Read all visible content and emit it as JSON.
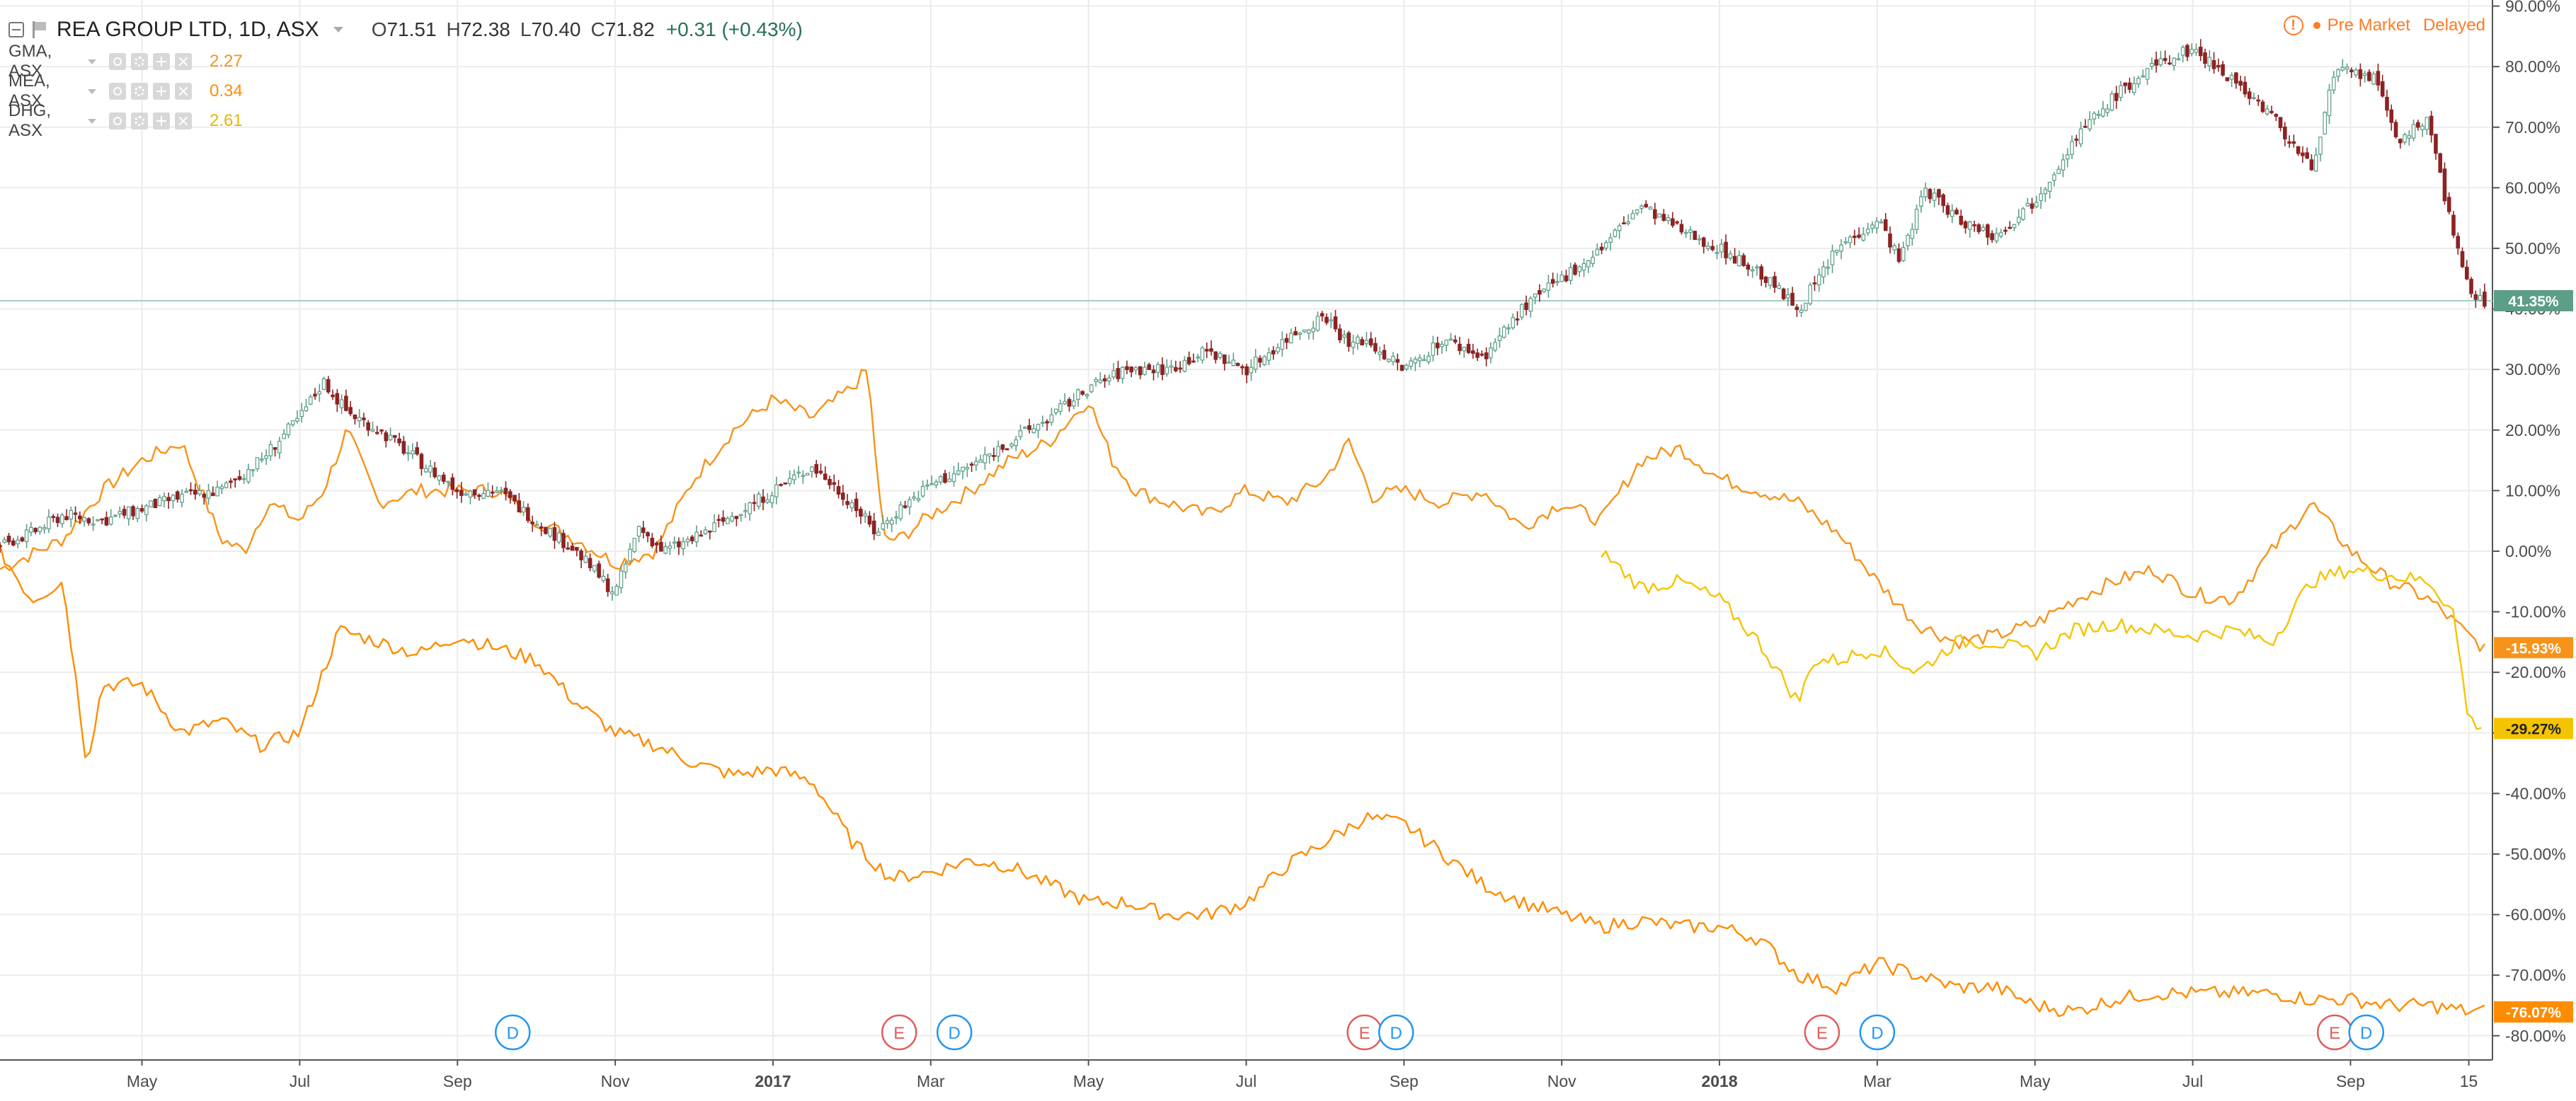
{
  "header": {
    "title": "REA GROUP LTD, 1D, ASX",
    "ohlc": {
      "o_label": "O",
      "o": "71.51",
      "h_label": "H",
      "h": "72.38",
      "l_label": "L",
      "l": "70.40",
      "c_label": "C",
      "c": "71.82",
      "change": "+0.31 (+0.43%)"
    }
  },
  "comparisons": [
    {
      "symbol": "GMA, ASX",
      "value": "2.27",
      "color": "#f7931a"
    },
    {
      "symbol": "MEA, ASX",
      "value": "0.34",
      "color": "#ff8c00"
    },
    {
      "symbol": "DHG, ASX",
      "value": "2.61",
      "color": "#f5c400"
    }
  ],
  "status": {
    "pre_market": "Pre Market",
    "delayed": "Delayed",
    "warning_icon": "!"
  },
  "colors": {
    "up": "#5c9e88",
    "down": "#8c2323",
    "grid": "#ececec",
    "hline": "#a3cfc0"
  },
  "chart_data": {
    "type": "line",
    "y_axis": {
      "ticks": [
        "90.00%",
        "80.00%",
        "70.00%",
        "60.00%",
        "50.00%",
        "40.00%",
        "30.00%",
        "20.00%",
        "10.00%",
        "0.00%",
        "-10.00%",
        "-20.00%",
        "-30.00%",
        "-40.00%",
        "-50.00%",
        "-60.00%",
        "-70.00%",
        "-80.00%"
      ],
      "min": -84,
      "max": 91,
      "unit": "%"
    },
    "x_axis": {
      "ticks": [
        {
          "label": "May",
          "t": 1.0,
          "bold": false
        },
        {
          "label": "Jul",
          "t": 3.0,
          "bold": false
        },
        {
          "label": "Sep",
          "t": 5.0,
          "bold": false
        },
        {
          "label": "Nov",
          "t": 7.0,
          "bold": false
        },
        {
          "label": "2017",
          "t": 9.0,
          "bold": true
        },
        {
          "label": "Mar",
          "t": 11.0,
          "bold": false
        },
        {
          "label": "May",
          "t": 13.0,
          "bold": false
        },
        {
          "label": "Jul",
          "t": 15.0,
          "bold": false
        },
        {
          "label": "Sep",
          "t": 17.0,
          "bold": false
        },
        {
          "label": "Nov",
          "t": 19.0,
          "bold": false
        },
        {
          "label": "2018",
          "t": 21.0,
          "bold": true
        },
        {
          "label": "Mar",
          "t": 23.0,
          "bold": false
        },
        {
          "label": "May",
          "t": 25.0,
          "bold": false
        },
        {
          "label": "Jul",
          "t": 27.0,
          "bold": false
        },
        {
          "label": "Sep",
          "t": 29.0,
          "bold": false
        },
        {
          "label": "15",
          "t": 30.5,
          "bold": false
        }
      ],
      "t_min": -0.8,
      "t_max": 30.8
    },
    "series": [
      {
        "symbol": "REA",
        "style": "candle",
        "last_label": "41.35%",
        "label_color": "#5c9e88",
        "points": [
          [
            -0.8,
            1
          ],
          [
            -0.4,
            3
          ],
          [
            0,
            6
          ],
          [
            0.5,
            5
          ],
          [
            1,
            7
          ],
          [
            1.5,
            9
          ],
          [
            2,
            10
          ],
          [
            2.5,
            15
          ],
          [
            3,
            22
          ],
          [
            3.3,
            28
          ],
          [
            3.6,
            23
          ],
          [
            4,
            20
          ],
          [
            4.5,
            15
          ],
          [
            5,
            10
          ],
          [
            5.5,
            10
          ],
          [
            6,
            5
          ],
          [
            6.5,
            0
          ],
          [
            7,
            -7
          ],
          [
            7.3,
            4
          ],
          [
            7.6,
            0
          ],
          [
            8,
            2
          ],
          [
            8.5,
            6
          ],
          [
            9,
            10
          ],
          [
            9.5,
            14
          ],
          [
            10,
            8
          ],
          [
            10.3,
            3
          ],
          [
            10.6,
            7
          ],
          [
            11,
            11
          ],
          [
            11.5,
            14
          ],
          [
            12,
            18
          ],
          [
            12.5,
            22
          ],
          [
            13,
            27
          ],
          [
            13.5,
            30
          ],
          [
            14,
            30
          ],
          [
            14.5,
            33
          ],
          [
            15,
            30
          ],
          [
            15.5,
            35
          ],
          [
            16,
            39
          ],
          [
            16.3,
            34
          ],
          [
            16.5,
            35
          ],
          [
            17,
            30
          ],
          [
            17.5,
            35
          ],
          [
            18,
            32
          ],
          [
            18.5,
            40
          ],
          [
            19,
            45
          ],
          [
            19.5,
            50
          ],
          [
            20,
            57
          ],
          [
            20.5,
            53
          ],
          [
            21,
            50
          ],
          [
            21.5,
            46
          ],
          [
            22,
            40
          ],
          [
            22.5,
            50
          ],
          [
            23,
            55
          ],
          [
            23.3,
            48
          ],
          [
            23.6,
            60
          ],
          [
            24,
            55
          ],
          [
            24.5,
            52
          ],
          [
            25,
            58
          ],
          [
            25.5,
            68
          ],
          [
            26,
            75
          ],
          [
            26.5,
            80
          ],
          [
            27,
            83
          ],
          [
            27.5,
            78
          ],
          [
            28,
            72
          ],
          [
            28.5,
            63
          ],
          [
            28.8,
            79
          ],
          [
            29,
            79
          ],
          [
            29.3,
            78
          ],
          [
            29.6,
            68
          ],
          [
            30,
            71
          ],
          [
            30.3,
            52
          ],
          [
            30.5,
            43
          ],
          [
            30.7,
            41
          ]
        ]
      },
      {
        "symbol": "GMA, ASX",
        "color": "#f7931a",
        "last_label": "-15.93%",
        "label_color": "#f7931a",
        "points": [
          [
            -0.8,
            -3
          ],
          [
            0,
            2
          ],
          [
            0.5,
            10
          ],
          [
            1,
            15
          ],
          [
            1.5,
            18
          ],
          [
            2,
            2
          ],
          [
            2.3,
            0
          ],
          [
            2.6,
            8
          ],
          [
            3,
            5
          ],
          [
            3.3,
            10
          ],
          [
            3.6,
            20
          ],
          [
            4,
            8
          ],
          [
            4.5,
            10
          ],
          [
            5,
            10
          ],
          [
            5.5,
            10
          ],
          [
            6,
            5
          ],
          [
            6.5,
            2
          ],
          [
            7,
            -2
          ],
          [
            7.5,
            0
          ],
          [
            8,
            12
          ],
          [
            8.5,
            20
          ],
          [
            9,
            25
          ],
          [
            9.5,
            22
          ],
          [
            10,
            27
          ],
          [
            10.2,
            30
          ],
          [
            10.4,
            2
          ],
          [
            10.6,
            2
          ],
          [
            11,
            6
          ],
          [
            11.5,
            10
          ],
          [
            12,
            15
          ],
          [
            12.5,
            18
          ],
          [
            13,
            25
          ],
          [
            13.3,
            15
          ],
          [
            13.6,
            10
          ],
          [
            14,
            8
          ],
          [
            14.5,
            6
          ],
          [
            15,
            10
          ],
          [
            15.5,
            8
          ],
          [
            16,
            12
          ],
          [
            16.3,
            18
          ],
          [
            16.6,
            9
          ],
          [
            17,
            10
          ],
          [
            17.5,
            8
          ],
          [
            18,
            10
          ],
          [
            18.5,
            4
          ],
          [
            19,
            8
          ],
          [
            19.5,
            5
          ],
          [
            20,
            15
          ],
          [
            20.5,
            17
          ],
          [
            21,
            12
          ],
          [
            21.5,
            10
          ],
          [
            22,
            8
          ],
          [
            22.5,
            3
          ],
          [
            23,
            -5
          ],
          [
            23.5,
            -12
          ],
          [
            24,
            -15
          ],
          [
            24.5,
            -14
          ],
          [
            25,
            -12
          ],
          [
            25.5,
            -8
          ],
          [
            26,
            -5
          ],
          [
            26.5,
            -3
          ],
          [
            27,
            -7
          ],
          [
            27.5,
            -8
          ],
          [
            28,
            0
          ],
          [
            28.5,
            8
          ],
          [
            29,
            0
          ],
          [
            29.5,
            -5
          ],
          [
            30,
            -8
          ],
          [
            30.5,
            -14
          ],
          [
            30.7,
            -16
          ]
        ]
      },
      {
        "symbol": "MEA, ASX",
        "color": "#ff8c00",
        "last_label": "-76.07%",
        "label_color": "#ff8c00",
        "points": [
          [
            -0.8,
            0
          ],
          [
            -0.4,
            -8
          ],
          [
            0,
            -5
          ],
          [
            0.3,
            -35
          ],
          [
            0.5,
            -22
          ],
          [
            1,
            -22
          ],
          [
            1.5,
            -30
          ],
          [
            2,
            -28
          ],
          [
            2.5,
            -32
          ],
          [
            3,
            -30
          ],
          [
            3.5,
            -13
          ],
          [
            4,
            -15
          ],
          [
            4.5,
            -17
          ],
          [
            5,
            -14
          ],
          [
            5.5,
            -16
          ],
          [
            6,
            -18
          ],
          [
            6.5,
            -25
          ],
          [
            7,
            -30
          ],
          [
            7.5,
            -32
          ],
          [
            8,
            -35
          ],
          [
            8.5,
            -37
          ],
          [
            9,
            -36
          ],
          [
            9.5,
            -38
          ],
          [
            10,
            -48
          ],
          [
            10.5,
            -54
          ],
          [
            11,
            -53
          ],
          [
            11.5,
            -51
          ],
          [
            12,
            -52
          ],
          [
            12.5,
            -55
          ],
          [
            13,
            -58
          ],
          [
            13.5,
            -58
          ],
          [
            14,
            -60
          ],
          [
            14.5,
            -60
          ],
          [
            15,
            -58
          ],
          [
            15.5,
            -52
          ],
          [
            16,
            -48
          ],
          [
            16.5,
            -44
          ],
          [
            17,
            -45
          ],
          [
            17.5,
            -50
          ],
          [
            18,
            -55
          ],
          [
            18.5,
            -58
          ],
          [
            19,
            -60
          ],
          [
            19.5,
            -62
          ],
          [
            20,
            -61
          ],
          [
            20.5,
            -62
          ],
          [
            21,
            -62
          ],
          [
            21.5,
            -64
          ],
          [
            22,
            -70
          ],
          [
            22.5,
            -72
          ],
          [
            23,
            -68
          ],
          [
            23.5,
            -70
          ],
          [
            24,
            -72
          ],
          [
            24.5,
            -72
          ],
          [
            25,
            -75
          ],
          [
            25.5,
            -76
          ],
          [
            26,
            -74
          ],
          [
            26.5,
            -73
          ],
          [
            27,
            -73
          ],
          [
            27.5,
            -73
          ],
          [
            28,
            -73
          ],
          [
            28.5,
            -74
          ],
          [
            29,
            -74
          ],
          [
            29.5,
            -75
          ],
          [
            30,
            -75
          ],
          [
            30.5,
            -76
          ],
          [
            30.7,
            -76
          ]
        ]
      },
      {
        "symbol": "DHG, ASX",
        "color": "#f5c400",
        "last_label": "-29.27%",
        "label_color": "#f5c400",
        "points": [
          [
            19.5,
            0
          ],
          [
            20,
            -6
          ],
          [
            20.5,
            -5
          ],
          [
            21,
            -8
          ],
          [
            21.5,
            -15
          ],
          [
            22,
            -25
          ],
          [
            22.2,
            -18
          ],
          [
            22.5,
            -18
          ],
          [
            23,
            -16
          ],
          [
            23.5,
            -20
          ],
          [
            24,
            -15
          ],
          [
            24.5,
            -15
          ],
          [
            25,
            -17
          ],
          [
            25.5,
            -13
          ],
          [
            26,
            -12
          ],
          [
            26.5,
            -13
          ],
          [
            27,
            -14
          ],
          [
            27.5,
            -13
          ],
          [
            28,
            -15
          ],
          [
            28.5,
            -5
          ],
          [
            29,
            -3
          ],
          [
            29.5,
            -4
          ],
          [
            30,
            -5
          ],
          [
            30.3,
            -10
          ],
          [
            30.5,
            -28
          ],
          [
            30.7,
            -29
          ]
        ]
      }
    ],
    "current_level": 41.35,
    "markers": [
      {
        "type": "D",
        "t": 5.7,
        "color": "#2196f3"
      },
      {
        "type": "E",
        "t": 10.6,
        "color": "#e25c5c"
      },
      {
        "type": "D",
        "t": 11.3,
        "color": "#2196f3"
      },
      {
        "type": "E",
        "t": 16.5,
        "color": "#e25c5c"
      },
      {
        "type": "D",
        "t": 16.9,
        "color": "#2196f3"
      },
      {
        "type": "E",
        "t": 22.3,
        "color": "#e25c5c"
      },
      {
        "type": "D",
        "t": 23.0,
        "color": "#2196f3"
      },
      {
        "type": "E",
        "t": 28.8,
        "color": "#e25c5c"
      },
      {
        "type": "D",
        "t": 29.2,
        "color": "#2196f3"
      }
    ]
  }
}
